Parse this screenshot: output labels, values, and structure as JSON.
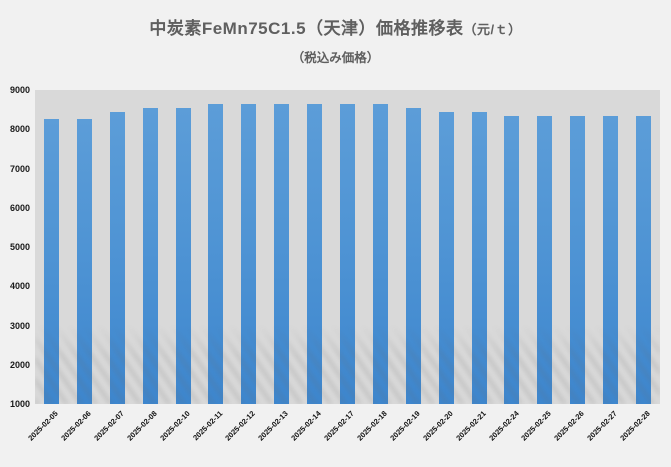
{
  "header": {
    "title_main": "中炭素FeMn75C1.5（天津）価格推移表",
    "title_unit": "（元/ｔ）",
    "subtitle": "（税込み価格）"
  },
  "chart_data": {
    "type": "bar",
    "title": "中炭素FeMn75C1.5（天津）価格推移表（元/ｔ）",
    "subtitle": "（税込み価格）",
    "categories": [
      "2025-02-05",
      "2025-02-06",
      "2025-02-07",
      "2025-02-08",
      "2025-02-10",
      "2025-02-11",
      "2025-02-12",
      "2025-02-13",
      "2025-02-14",
      "2025-02-17",
      "2025-02-18",
      "2025-02-19",
      "2025-02-20",
      "2025-02-21",
      "2025-02-24",
      "2025-02-25",
      "2025-02-26",
      "2025-02-27",
      "2025-02-28"
    ],
    "values": [
      8250,
      8250,
      8450,
      8550,
      8550,
      8650,
      8650,
      8650,
      8650,
      8650,
      8650,
      8550,
      8450,
      8450,
      8350,
      8350,
      8350,
      8350,
      8350
    ],
    "xlabel": "",
    "ylabel": "",
    "ylim": [
      1000,
      9000
    ],
    "yticks": [
      1000,
      2000,
      3000,
      4000,
      5000,
      6000,
      7000,
      8000,
      9000
    ],
    "grid": false,
    "legend": "none",
    "x_tick_rotation": 45,
    "colors": {
      "bar_top": "#5c9dd8",
      "bar_bottom": "#3d86ce",
      "plot_background": "#d9d9d9",
      "page_background": "#f1f1f1",
      "title_text": "#5f5f5f",
      "axis_text": "#1a1a1a"
    }
  }
}
